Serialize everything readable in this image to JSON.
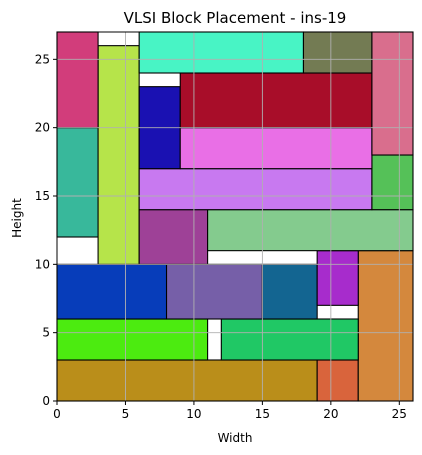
{
  "chart_data": {
    "type": "block_placement",
    "title": "VLSI Block Placement - ins-19",
    "xlabel": "Width",
    "ylabel": "Height",
    "xlim": [
      0,
      26
    ],
    "ylim": [
      0,
      27
    ],
    "xticks": [
      0,
      5,
      10,
      15,
      20,
      25
    ],
    "yticks": [
      0,
      5,
      10,
      15,
      20,
      25
    ],
    "grid": true,
    "blocks": [
      {
        "x": 0,
        "y": 0,
        "w": 19,
        "h": 3,
        "color": "#BA8E1A"
      },
      {
        "x": 19,
        "y": 0,
        "w": 3,
        "h": 3,
        "color": "#D9643C"
      },
      {
        "x": 22,
        "y": 0,
        "w": 4,
        "h": 11,
        "color": "#D4883D"
      },
      {
        "x": 0,
        "y": 3,
        "w": 11,
        "h": 3,
        "color": "#4CEB10"
      },
      {
        "x": 12,
        "y": 3,
        "w": 10,
        "h": 3,
        "color": "#20C865"
      },
      {
        "x": 0,
        "y": 6,
        "w": 8,
        "h": 4,
        "color": "#073DBA"
      },
      {
        "x": 8,
        "y": 6,
        "w": 7,
        "h": 4,
        "color": "#765FA8"
      },
      {
        "x": 15,
        "y": 6,
        "w": 4,
        "h": 4,
        "color": "#136591"
      },
      {
        "x": 19,
        "y": 7,
        "w": 3,
        "h": 4,
        "color": "#A72CCC"
      },
      {
        "x": 0,
        "y": 12,
        "w": 3,
        "h": 8,
        "color": "#38B89B"
      },
      {
        "x": 3,
        "y": 10,
        "w": 3,
        "h": 16,
        "color": "#B6E44A"
      },
      {
        "x": 6,
        "y": 10,
        "w": 5,
        "h": 4,
        "color": "#9E4197"
      },
      {
        "x": 11,
        "y": 11,
        "w": 15,
        "h": 3,
        "color": "#84CB8E"
      },
      {
        "x": 6,
        "y": 14,
        "w": 17,
        "h": 3,
        "color": "#C879F0"
      },
      {
        "x": 23,
        "y": 14,
        "w": 3,
        "h": 4,
        "color": "#55C158"
      },
      {
        "x": 6,
        "y": 17,
        "w": 3,
        "h": 6,
        "color": "#1A11B2"
      },
      {
        "x": 9,
        "y": 17,
        "w": 14,
        "h": 3,
        "color": "#E96FE6"
      },
      {
        "x": 9,
        "y": 20,
        "w": 14,
        "h": 4,
        "color": "#A80D29"
      },
      {
        "x": 0,
        "y": 20,
        "w": 3,
        "h": 7,
        "color": "#D23D7B"
      },
      {
        "x": 6,
        "y": 24,
        "w": 12,
        "h": 3,
        "color": "#48F4C5"
      },
      {
        "x": 18,
        "y": 24,
        "w": 5,
        "h": 3,
        "color": "#737B53"
      },
      {
        "x": 23,
        "y": 18,
        "w": 3,
        "h": 9,
        "color": "#D96E8D"
      }
    ]
  }
}
